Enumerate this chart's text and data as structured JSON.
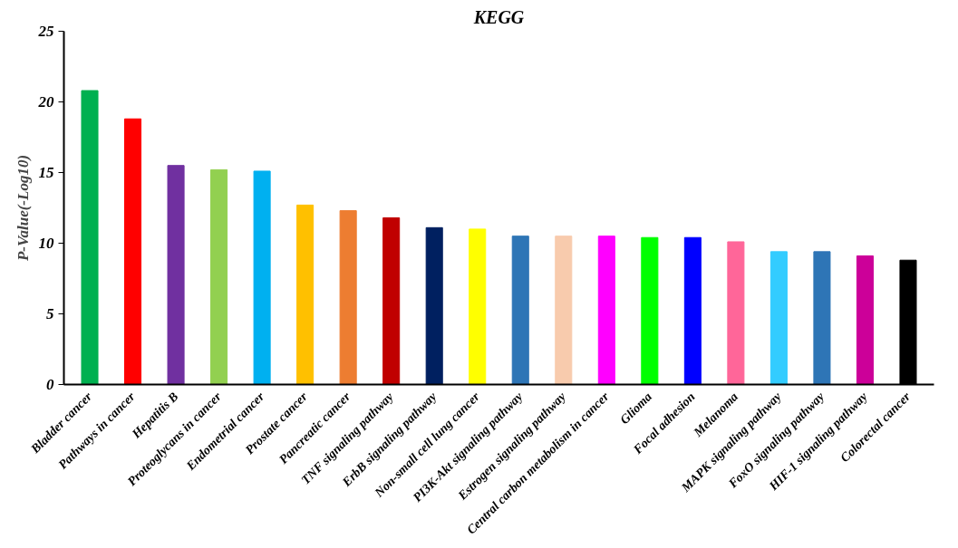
{
  "chart_data": {
    "type": "bar",
    "title": "KEGG",
    "ylabel": "P-Value(-Log10)",
    "categories": [
      "Bladder cancer",
      "Pathways in cancer",
      "Hepatitis B",
      "Proteoglycans in cancer",
      "Endometrial cancer",
      "Prostate cancer",
      "Pancreatic cancer",
      "TNF signaling pathway",
      "ErbB signaling pathway",
      "Non-small cell lung cancer",
      "PI3K-Akt signaling pathway",
      "Estrogen signaling pathway",
      "Central carbon metabolism in cancer",
      "Glioma",
      "Focal adhesion",
      "Melanoma",
      "MAPK signaling pathway",
      "FoxO signaling pathway",
      "HIF-1 signaling pathway",
      "Colorectal cancer"
    ],
    "values": [
      20.8,
      18.8,
      15.5,
      15.2,
      15.1,
      12.7,
      12.3,
      11.8,
      11.1,
      11.0,
      10.5,
      10.5,
      10.5,
      10.4,
      10.4,
      10.1,
      9.4,
      9.4,
      9.1,
      8.8
    ],
    "colors": [
      "#00b050",
      "#ff0000",
      "#7030a0",
      "#92d050",
      "#00b0f0",
      "#ffc000",
      "#ed7d31",
      "#c00000",
      "#002060",
      "#ffff00",
      "#2e75b6",
      "#f8cbad",
      "#ff00ff",
      "#00ff00",
      "#0000ff",
      "#ff6699",
      "#33ccff",
      "#2e75b6",
      "#cc0099",
      "#000000"
    ],
    "ylim": [
      0,
      25
    ],
    "yticks": [
      0,
      5,
      10,
      15,
      20,
      25
    ],
    "grid": false
  }
}
